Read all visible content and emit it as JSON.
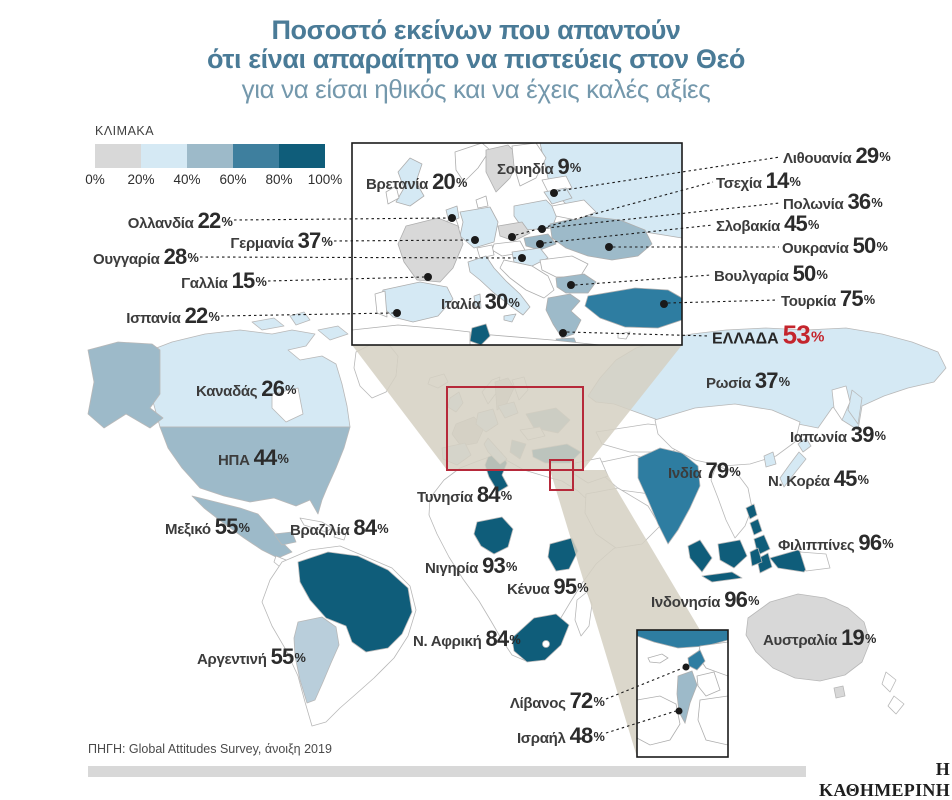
{
  "title": {
    "line1": "Ποσοστό εκείνων που απαντούν",
    "line2": "ότι είναι απαραίτητο να πιστεύεις στον Θεό",
    "line3": "για να είσαι ηθικός και να έχεις καλές αξίες"
  },
  "legend": {
    "title": "ΚΛΙΜΑΚΑ",
    "ticks": [
      "0%",
      "20%",
      "40%",
      "60%",
      "80%",
      "100%"
    ],
    "colors": [
      "#d8d8d8",
      "#d5e9f4",
      "#9dbac9",
      "#3e7f9e",
      "#0f5d7a"
    ]
  },
  "colors": {
    "title_blue": "#4a7b97",
    "highlight_red": "#c4252d",
    "cone_tan": "#d5d0c2",
    "no_data": "#ffffff"
  },
  "chart_data": {
    "type": "choropleth_map",
    "title": "Ποσοστό εκείνων που απαντούν ότι είναι απαραίτητο να πιστεύεις στον Θεό για να είσαι ηθικός και να έχεις καλές αξίες",
    "unit": "%",
    "scale": {
      "label": "ΚΛΙΜΑΚΑ",
      "breaks": [
        0,
        20,
        40,
        60,
        80,
        100
      ],
      "colors": [
        "#d8d8d8",
        "#d5e9f4",
        "#9dbac9",
        "#3e7f9e",
        "#0f5d7a"
      ]
    },
    "points": [
      {
        "id": "britain",
        "name": "Βρετανία",
        "value": 20
      },
      {
        "id": "sweden",
        "name": "Σουηδία",
        "value": 9
      },
      {
        "id": "netherlands",
        "name": "Ολλανδία",
        "value": 22
      },
      {
        "id": "germany",
        "name": "Γερμανία",
        "value": 37
      },
      {
        "id": "hungary",
        "name": "Ουγγαρία",
        "value": 28
      },
      {
        "id": "france",
        "name": "Γαλλία",
        "value": 15
      },
      {
        "id": "spain",
        "name": "Ισπανία",
        "value": 22
      },
      {
        "id": "italy",
        "name": "Ιταλία",
        "value": 30
      },
      {
        "id": "lithuania",
        "name": "Λιθουανία",
        "value": 29
      },
      {
        "id": "czechia",
        "name": "Τσεχία",
        "value": 14
      },
      {
        "id": "poland",
        "name": "Πολωνία",
        "value": 36
      },
      {
        "id": "slovakia",
        "name": "Σλοβακία",
        "value": 45
      },
      {
        "id": "ukraine",
        "name": "Ουκρανία",
        "value": 50
      },
      {
        "id": "bulgaria",
        "name": "Βουλγαρία",
        "value": 50
      },
      {
        "id": "turkey",
        "name": "Τουρκία",
        "value": 75
      },
      {
        "id": "greece",
        "name": "ΕΛΛΑΔΑ",
        "value": 53,
        "highlight": true
      },
      {
        "id": "russia",
        "name": "Ρωσία",
        "value": 37
      },
      {
        "id": "canada",
        "name": "Καναδάς",
        "value": 26
      },
      {
        "id": "usa",
        "name": "ΗΠΑ",
        "value": 44
      },
      {
        "id": "mexico",
        "name": "Μεξικό",
        "value": 55
      },
      {
        "id": "brazil",
        "name": "Βραζιλία",
        "value": 84
      },
      {
        "id": "argentina",
        "name": "Αργεντινή",
        "value": 55
      },
      {
        "id": "tunisia",
        "name": "Τυνησία",
        "value": 84
      },
      {
        "id": "nigeria",
        "name": "Νιγηρία",
        "value": 93
      },
      {
        "id": "kenya",
        "name": "Κένυα",
        "value": 95
      },
      {
        "id": "southafrica",
        "name": "Ν. Αφρική",
        "value": 84
      },
      {
        "id": "india",
        "name": "Ινδία",
        "value": 79
      },
      {
        "id": "japan",
        "name": "Ιαπωνία",
        "value": 39
      },
      {
        "id": "skorea",
        "name": "Ν. Κορέα",
        "value": 45
      },
      {
        "id": "philippines",
        "name": "Φιλιππίνες",
        "value": 96
      },
      {
        "id": "indonesia",
        "name": "Ινδονησία",
        "value": 96
      },
      {
        "id": "australia",
        "name": "Αυστραλία",
        "value": 19
      },
      {
        "id": "lebanon",
        "name": "Λίβανος",
        "value": 72
      },
      {
        "id": "israel",
        "name": "Ισραήλ",
        "value": 48
      }
    ]
  },
  "footer": {
    "source": "ΠΗΓΗ: Global Attitudes Survey, άνοιξη 2019",
    "brand": "Η ΚΑΘΗΜΕΡΙΝΗ"
  }
}
